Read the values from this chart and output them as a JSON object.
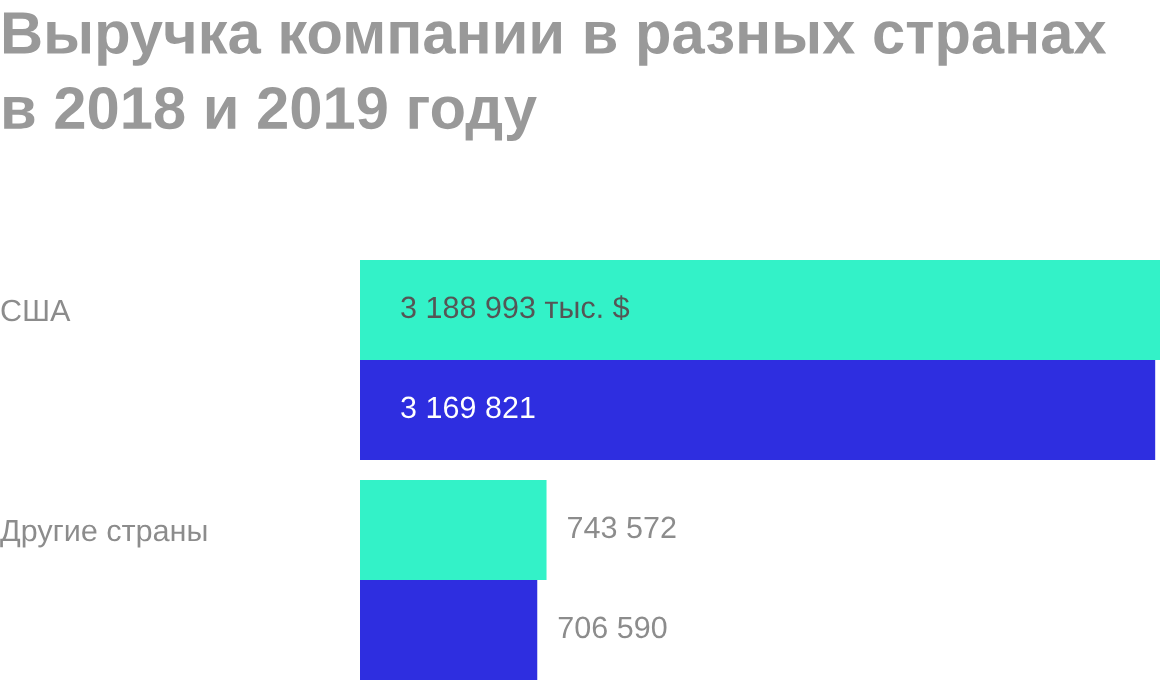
{
  "chart_data": {
    "type": "bar",
    "orientation": "horizontal",
    "title": "Выручка компании в разных странах в 2018 и 2019 году",
    "categories": [
      "США",
      "Другие страны"
    ],
    "series": [
      {
        "color": "#33f2c8",
        "values": [
          3188993,
          743572
        ],
        "value_labels": [
          "3 188 993 тыс. $",
          "743 572"
        ]
      },
      {
        "color": "#2e2ee0",
        "values": [
          3169821,
          706590
        ],
        "value_labels": [
          "3 169 821",
          "706 590"
        ]
      }
    ],
    "tick_labels": "y",
    "grid": false,
    "legend": false
  }
}
